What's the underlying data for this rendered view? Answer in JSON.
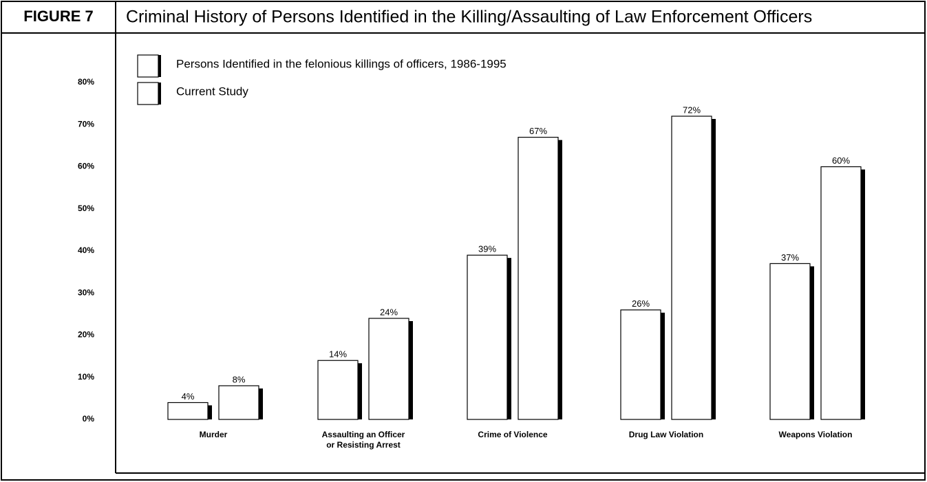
{
  "chart_data": {
    "type": "bar",
    "figure_label": "FIGURE 7",
    "title": "Criminal History of Persons Identified in the Killing/Assaulting of Law Enforcement Officers",
    "categories": [
      "Murder",
      "Assaulting an Officer\nor Resisting Arrest",
      "Crime of Violence",
      "Drug  Law Violation",
      "Weapons  Violation"
    ],
    "series": [
      {
        "name": "Persons Identified in the felonious killings of officers, 1986-1995",
        "color": "#ffffff",
        "values": [
          4,
          14,
          39,
          26,
          37
        ],
        "value_labels": [
          "4%",
          "14%",
          "39%",
          "26%",
          "37%"
        ]
      },
      {
        "name": "Current Study",
        "color": "#ffffff",
        "values": [
          8,
          24,
          67,
          72,
          60
        ],
        "value_labels": [
          "8%",
          "24%",
          "67%",
          "72%",
          "60%"
        ]
      }
    ],
    "ylim": [
      0,
      80
    ],
    "yticks": [
      {
        "value": 0,
        "label": "0%"
      },
      {
        "value": 10,
        "label": "10%"
      },
      {
        "value": 20,
        "label": "20%"
      },
      {
        "value": 30,
        "label": "30%"
      },
      {
        "value": 40,
        "label": "40%"
      },
      {
        "value": 50,
        "label": "50%"
      },
      {
        "value": 60,
        "label": "60%"
      },
      {
        "value": 70,
        "label": "70%"
      },
      {
        "value": 80,
        "label": "80%"
      }
    ],
    "grid": false,
    "legend": "top-left"
  }
}
